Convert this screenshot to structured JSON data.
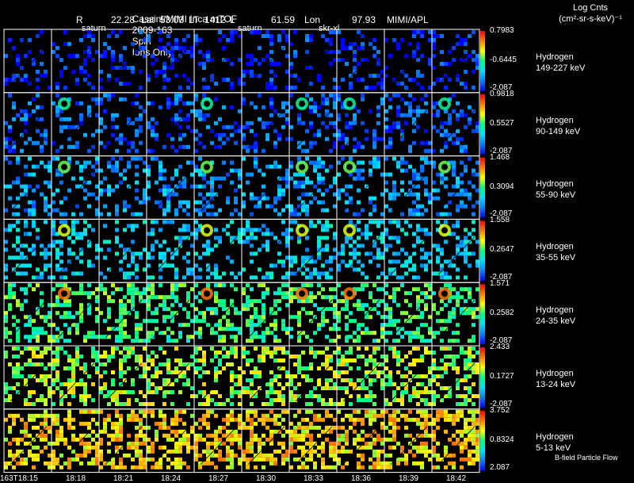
{
  "header": {
    "line1": [
      "Cassini/MIMI Inca mTOF",
      "2009-163",
      "Spin",
      "Ions Only"
    ],
    "line2": [
      {
        "label": "R",
        "value": "22.28"
      },
      {
        "label": "Lat",
        "value": "53.03"
      },
      {
        "label": "LT",
        "value": "1412"
      },
      {
        "label": "L",
        "value": "61.59"
      },
      {
        "label": "Lon",
        "value": "97.93"
      },
      {
        "label": "",
        "value": "MIMI/APL"
      }
    ],
    "units_title": "Log Cnts",
    "units": "(cm²-sr-s-keV)⁻¹"
  },
  "planet_labels": [
    "saturn",
    "saturn",
    "saturn",
    "skr-xl"
  ],
  "footnote": "B-field Particle Flow",
  "colors": {
    "cb_stops": [
      "#0000ff",
      "#0080ff",
      "#00e0ff",
      "#00ff80",
      "#ffff00",
      "#ff8000",
      "#ff0000"
    ]
  },
  "chart_data": {
    "type": "heatmap",
    "title": "Cassini/MIMI Inca mTOF 2009-163 Spin Ions Only",
    "times": [
      "163T18:15",
      "18:18",
      "18:21",
      "18:24",
      "18:27",
      "18:30",
      "18:33",
      "18:36",
      "18:39",
      "18:42"
    ],
    "channels": [
      {
        "species": "Hydrogen",
        "energy": "149-227 keV",
        "cmax": 0.7983,
        "cmid": -0.6445,
        "cmin": -2.087,
        "level": 0.05
      },
      {
        "species": "Hydrogen",
        "energy": "90-149 keV",
        "cmax": 0.9818,
        "cmid": 0.5527,
        "cmin": -2.087,
        "level": 0.12
      },
      {
        "species": "Hydrogen",
        "energy": "55-90 keV",
        "cmax": 1.468,
        "cmid": 0.3094,
        "cmin": -2.087,
        "level": 0.22
      },
      {
        "species": "Hydrogen",
        "energy": "35-55 keV",
        "cmax": 1.558,
        "cmid": 0.2647,
        "cmin": -2.087,
        "level": 0.3
      },
      {
        "species": "Hydrogen",
        "energy": "24-35 keV",
        "cmax": 1.571,
        "cmid": 0.2582,
        "cmin": -2.087,
        "level": 0.5
      },
      {
        "species": "Hydrogen",
        "energy": "13-24 keV",
        "cmax": 2.433,
        "cmid": 0.1727,
        "cmin": -2.087,
        "level": 0.6
      },
      {
        "species": "Hydrogen",
        "energy": "5-13 keV",
        "cmax": 3.752,
        "cmid": 0.8324,
        "cmin": 2.087,
        "level": 0.72
      }
    ]
  }
}
